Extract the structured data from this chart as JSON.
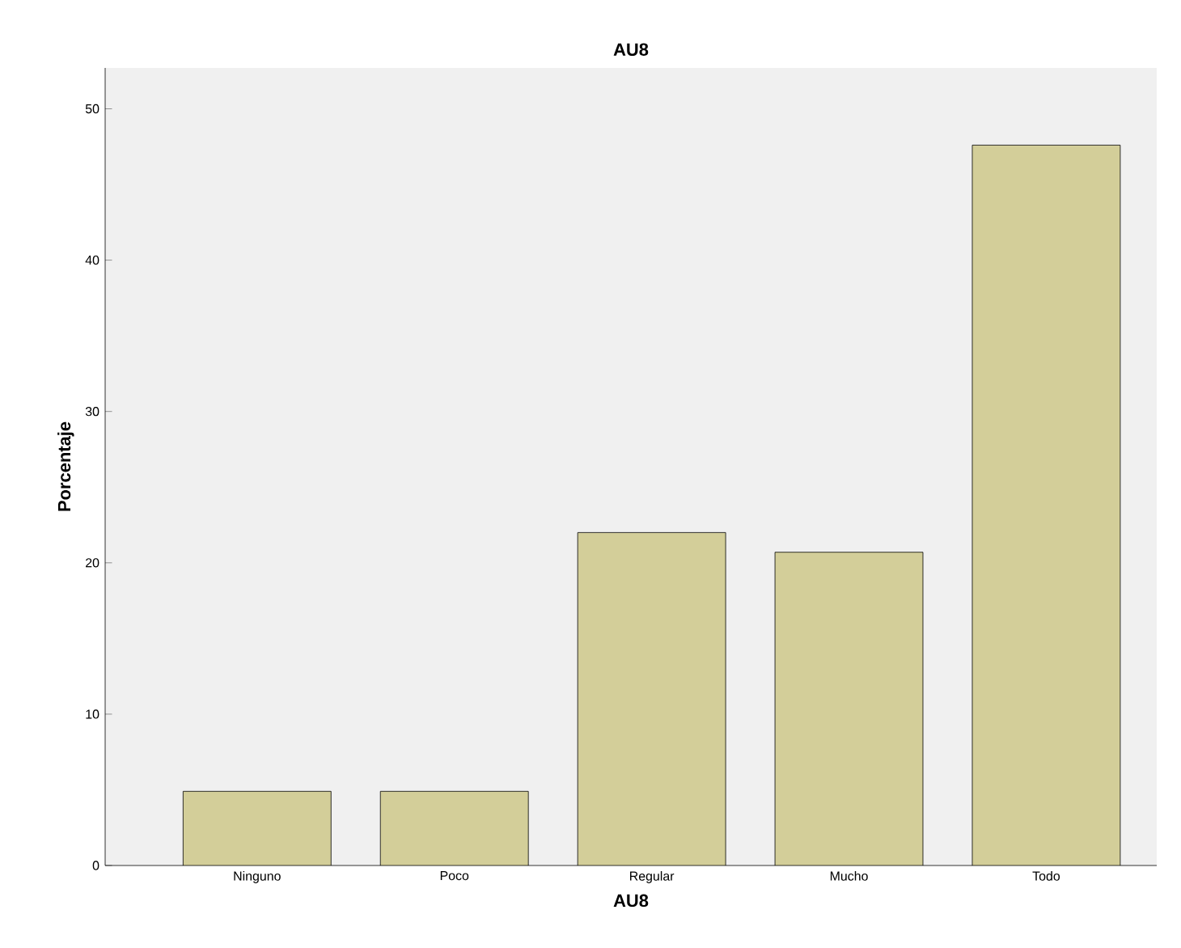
{
  "chart_data": {
    "type": "bar",
    "title": "AU8",
    "xlabel": "AU8",
    "ylabel": "Porcentaje",
    "categories": [
      "Ninguno",
      "Poco",
      "Regular",
      "Mucho",
      "Todo"
    ],
    "values": [
      4.9,
      4.9,
      22.0,
      20.7,
      47.6
    ],
    "color": "#d3ce99",
    "ylim": [
      0,
      52.7
    ],
    "yticks": [
      0,
      10,
      20,
      30,
      40,
      50
    ]
  }
}
